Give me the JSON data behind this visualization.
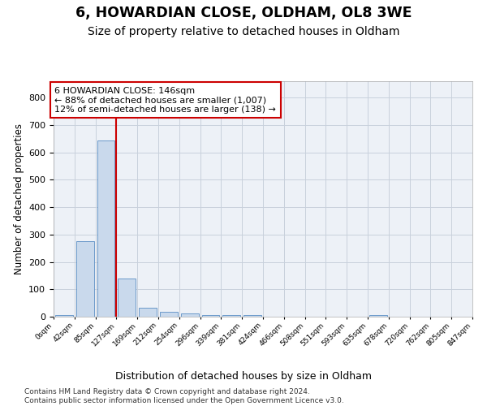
{
  "title": "6, HOWARDIAN CLOSE, OLDHAM, OL8 3WE",
  "subtitle": "Size of property relative to detached houses in Oldham",
  "xlabel": "Distribution of detached houses by size in Oldham",
  "ylabel": "Number of detached properties",
  "bar_values": [
    5,
    275,
    645,
    138,
    33,
    17,
    11,
    7,
    7,
    7,
    0,
    0,
    0,
    0,
    0,
    5,
    0,
    0,
    0,
    0
  ],
  "bar_labels": [
    "0sqm",
    "42sqm",
    "85sqm",
    "127sqm",
    "169sqm",
    "212sqm",
    "254sqm",
    "296sqm",
    "339sqm",
    "381sqm",
    "424sqm",
    "466sqm",
    "508sqm",
    "551sqm",
    "593sqm",
    "635sqm",
    "678sqm",
    "720sqm",
    "762sqm",
    "805sqm",
    "847sqm"
  ],
  "bar_color": "#c9d9ec",
  "bar_edge_color": "#5b8ec4",
  "grid_color": "#c8d0dc",
  "background_color": "#edf1f7",
  "ylim": [
    0,
    860
  ],
  "yticks": [
    0,
    100,
    200,
    300,
    400,
    500,
    600,
    700,
    800
  ],
  "red_line_color": "#cc0000",
  "property_bin_index": 3,
  "annotation_text": "6 HOWARDIAN CLOSE: 146sqm\n← 88% of detached houses are smaller (1,007)\n12% of semi-detached houses are larger (138) →",
  "footer": "Contains HM Land Registry data © Crown copyright and database right 2024.\nContains public sector information licensed under the Open Government Licence v3.0."
}
